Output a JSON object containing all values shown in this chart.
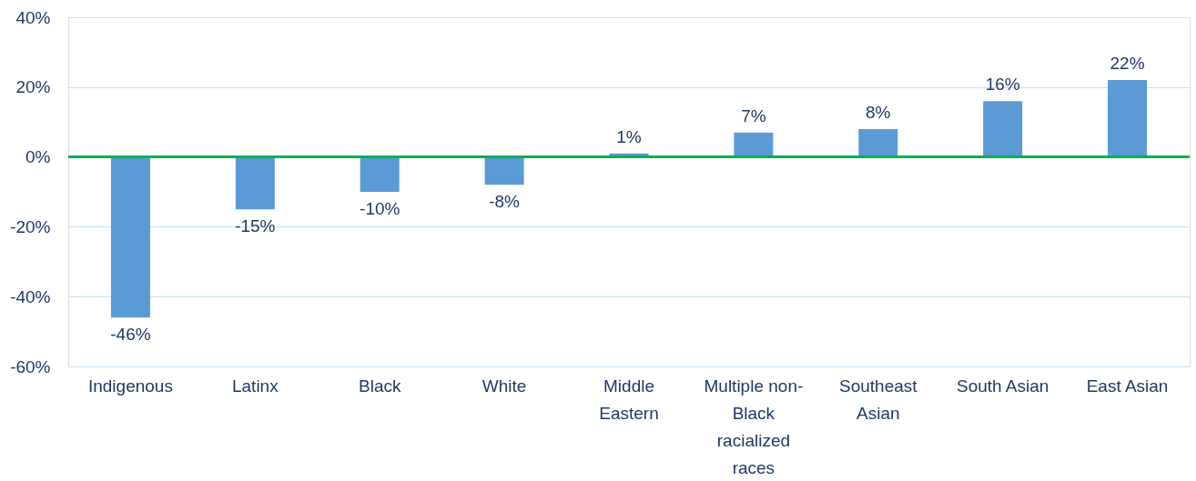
{
  "chart_data": {
    "type": "bar",
    "categories": [
      "Indigenous",
      "Latinx",
      "Black",
      "White",
      "Middle Eastern",
      "Multiple non-Black racialized races",
      "Southeast Asian",
      "South Asian",
      "East Asian"
    ],
    "values": [
      -46,
      -15,
      -10,
      -8,
      1,
      7,
      8,
      16,
      22
    ],
    "value_labels": [
      "-46%",
      "-15%",
      "-10%",
      "-8%",
      "1%",
      "7%",
      "8%",
      "16%",
      "22%"
    ],
    "color": "#5b9bd5",
    "ylim": [
      -60,
      40
    ],
    "yticks": [
      {
        "value": -60,
        "label": "-60%"
      },
      {
        "value": -40,
        "label": "-40%"
      },
      {
        "value": -20,
        "label": "-20%"
      },
      {
        "value": 0,
        "label": "0%"
      },
      {
        "value": 20,
        "label": "20%"
      },
      {
        "value": 40,
        "label": "40%"
      }
    ],
    "grid": "y",
    "ref_lines": [
      {
        "axis": "y",
        "value": 0,
        "color": "#00b050"
      }
    ]
  }
}
